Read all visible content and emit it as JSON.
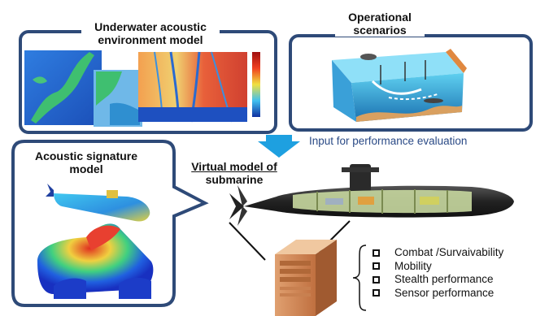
{
  "panels": {
    "environment": {
      "title_line1": "Underwater acoustic",
      "title_line2": "environment model"
    },
    "scenarios": {
      "title_line1": "Operational",
      "title_line2": "scenarios"
    },
    "signature": {
      "title_line1": "Acoustic signature",
      "title_line2": "model"
    }
  },
  "virtual_model": {
    "line1": "Virtual model of",
    "line2": "submarine"
  },
  "arrow_label": "Input for performance evaluation",
  "evaluation_items": [
    "Combat /Survaivability",
    "Mobility",
    "Stealth performance",
    "Sensor performance"
  ],
  "colors": {
    "panel_border": "#2e4a78",
    "arrow": "#1ea0e0",
    "label_text": "#2a4a86"
  }
}
